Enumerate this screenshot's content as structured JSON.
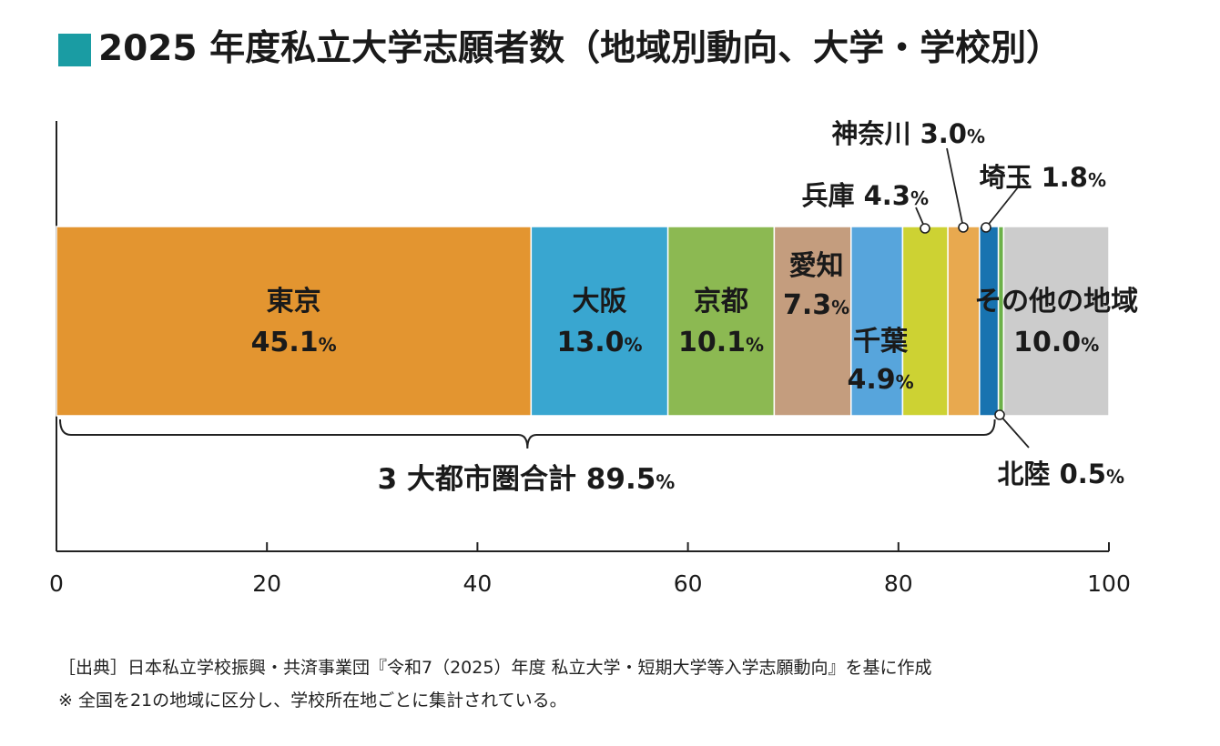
{
  "title": "2025 年度私立大学志願者数（地域別動向、大学・学校別）",
  "colors": {
    "title_mark": "#1a9ca3",
    "axis": "#222222",
    "label_text": "#1a1a1a"
  },
  "chart_data": {
    "type": "stacked-bar",
    "orientation": "horizontal",
    "xlim": [
      0,
      100
    ],
    "xticks": [
      0,
      20,
      40,
      60,
      80,
      100
    ],
    "unit": "%",
    "segments": [
      {
        "name": "東京",
        "value": 45.1,
        "value_label": "45.1",
        "color": "#e39530",
        "label_mode": "inside"
      },
      {
        "name": "大阪",
        "value": 13.0,
        "value_label": "13.0",
        "color": "#39a6d0",
        "label_mode": "inside"
      },
      {
        "name": "京都",
        "value": 10.1,
        "value_label": "10.1",
        "color": "#8cb952",
        "label_mode": "inside"
      },
      {
        "name": "愛知",
        "value": 7.3,
        "value_label": "7.3",
        "color": "#c49d7e",
        "label_mode": "inside-top"
      },
      {
        "name": "千葉",
        "value": 4.9,
        "value_label": "4.9",
        "color": "#57a5dc",
        "label_mode": "inside-low"
      },
      {
        "name": "兵庫",
        "value": 4.3,
        "value_label": "4.3",
        "color": "#cdd233",
        "label_mode": "callout"
      },
      {
        "name": "神奈川",
        "value": 3.0,
        "value_label": "3.0",
        "color": "#e8a94f",
        "label_mode": "callout"
      },
      {
        "name": "埼玉",
        "value": 1.8,
        "value_label": "1.8",
        "color": "#1873b0",
        "label_mode": "callout"
      },
      {
        "name": "北陸",
        "value": 0.5,
        "value_label": "0.5",
        "color": "#6cb148",
        "label_mode": "callout-below"
      },
      {
        "name": "その他の地域",
        "value": 10.0,
        "value_label": "10.0",
        "color": "#cccccc",
        "label_mode": "inside"
      }
    ],
    "bracket": {
      "label": "3 大都市圏合計",
      "value_label": "89.5",
      "from": 0,
      "to": 89.5
    }
  },
  "notes": [
    "［出典］日本私立学校振興・共済事業団『令和7（2025）年度 私立大学・短期大学等入学志願動向』を基に作成",
    "※ 全国を21の地域に区分し、学校所在地ごとに集計されている。"
  ]
}
